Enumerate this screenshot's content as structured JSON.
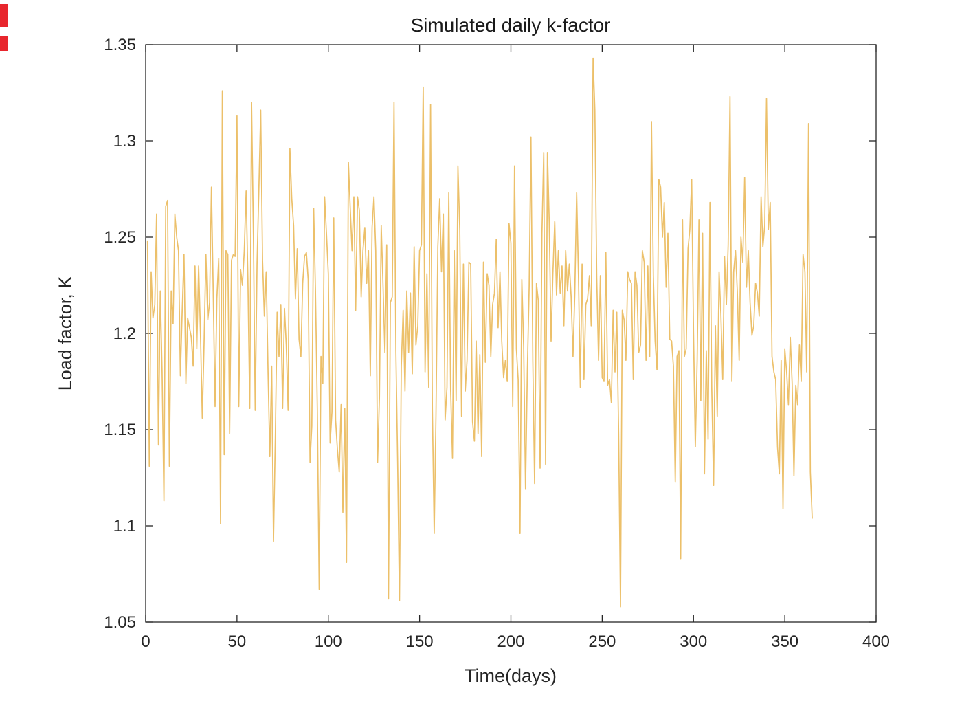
{
  "chart_data": {
    "type": "line",
    "title": "Simulated daily k-factor",
    "xlabel": "Time(days)",
    "ylabel": "Load factor, K",
    "xlim": [
      0,
      400
    ],
    "ylim": [
      1.05,
      1.35
    ],
    "xticks": [
      0,
      50,
      100,
      150,
      200,
      250,
      300,
      350,
      400
    ],
    "xtick_labels": [
      "0",
      "50",
      "100",
      "150",
      "200",
      "250",
      "300",
      "350",
      "400"
    ],
    "yticks": [
      1.05,
      1.1,
      1.15,
      1.2,
      1.25,
      1.3,
      1.35
    ],
    "ytick_labels": [
      "1.05",
      "1.1",
      "1.15",
      "1.2",
      "1.25",
      "1.3",
      "1.35"
    ],
    "grid": false,
    "legend": "none",
    "line_color": "#ecc06a",
    "axis_color": "#262626",
    "background_color": "#ffffff",
    "series": [
      {
        "name": "daily k-factor",
        "x_start": 1,
        "x_step": 1,
        "y": [
          1.248,
          1.131,
          1.232,
          1.208,
          1.215,
          1.262,
          1.142,
          1.222,
          1.18,
          1.113,
          1.266,
          1.269,
          1.131,
          1.222,
          1.205,
          1.262,
          1.25,
          1.243,
          1.178,
          1.211,
          1.241,
          1.174,
          1.208,
          1.203,
          1.198,
          1.183,
          1.235,
          1.192,
          1.235,
          1.201,
          1.156,
          1.195,
          1.241,
          1.207,
          1.216,
          1.276,
          1.222,
          1.162,
          1.218,
          1.239,
          1.101,
          1.326,
          1.137,
          1.243,
          1.241,
          1.148,
          1.238,
          1.241,
          1.24,
          1.313,
          1.162,
          1.233,
          1.225,
          1.243,
          1.274,
          1.228,
          1.161,
          1.32,
          1.251,
          1.16,
          1.236,
          1.276,
          1.316,
          1.238,
          1.209,
          1.232,
          1.18,
          1.136,
          1.183,
          1.092,
          1.146,
          1.211,
          1.188,
          1.215,
          1.161,
          1.213,
          1.194,
          1.16,
          1.296,
          1.27,
          1.256,
          1.218,
          1.244,
          1.197,
          1.188,
          1.226,
          1.24,
          1.242,
          1.228,
          1.133,
          1.152,
          1.265,
          1.222,
          1.161,
          1.067,
          1.188,
          1.174,
          1.271,
          1.252,
          1.231,
          1.143,
          1.159,
          1.26,
          1.155,
          1.14,
          1.128,
          1.163,
          1.107,
          1.161,
          1.081,
          1.289,
          1.266,
          1.243,
          1.271,
          1.212,
          1.271,
          1.264,
          1.219,
          1.243,
          1.255,
          1.226,
          1.243,
          1.178,
          1.255,
          1.271,
          1.243,
          1.133,
          1.167,
          1.256,
          1.224,
          1.19,
          1.246,
          1.062,
          1.216,
          1.219,
          1.32,
          1.191,
          1.133,
          1.061,
          1.183,
          1.212,
          1.17,
          1.222,
          1.19,
          1.221,
          1.179,
          1.245,
          1.194,
          1.204,
          1.243,
          1.246,
          1.328,
          1.18,
          1.231,
          1.172,
          1.319,
          1.161,
          1.096,
          1.158,
          1.245,
          1.27,
          1.232,
          1.262,
          1.155,
          1.172,
          1.273,
          1.171,
          1.135,
          1.243,
          1.165,
          1.287,
          1.254,
          1.157,
          1.236,
          1.17,
          1.186,
          1.237,
          1.236,
          1.154,
          1.144,
          1.196,
          1.148,
          1.189,
          1.136,
          1.237,
          1.185,
          1.231,
          1.225,
          1.188,
          1.215,
          1.221,
          1.249,
          1.203,
          1.232,
          1.196,
          1.177,
          1.186,
          1.175,
          1.257,
          1.247,
          1.162,
          1.287,
          1.192,
          1.176,
          1.096,
          1.228,
          1.193,
          1.119,
          1.179,
          1.224,
          1.302,
          1.186,
          1.122,
          1.226,
          1.217,
          1.13,
          1.252,
          1.294,
          1.132,
          1.294,
          1.258,
          1.196,
          1.231,
          1.258,
          1.22,
          1.243,
          1.221,
          1.235,
          1.204,
          1.243,
          1.222,
          1.236,
          1.219,
          1.188,
          1.221,
          1.273,
          1.231,
          1.172,
          1.236,
          1.176,
          1.215,
          1.218,
          1.23,
          1.204,
          1.343,
          1.316,
          1.229,
          1.186,
          1.23,
          1.177,
          1.175,
          1.242,
          1.173,
          1.176,
          1.164,
          1.212,
          1.18,
          1.211,
          1.148,
          1.058,
          1.212,
          1.207,
          1.186,
          1.232,
          1.228,
          1.226,
          1.176,
          1.232,
          1.225,
          1.19,
          1.194,
          1.243,
          1.237,
          1.186,
          1.235,
          1.188,
          1.31,
          1.23,
          1.196,
          1.181,
          1.28,
          1.276,
          1.25,
          1.268,
          1.224,
          1.252,
          1.197,
          1.196,
          1.183,
          1.123,
          1.188,
          1.191,
          1.083,
          1.259,
          1.188,
          1.192,
          1.244,
          1.254,
          1.28,
          1.2,
          1.141,
          1.186,
          1.259,
          1.165,
          1.252,
          1.127,
          1.191,
          1.145,
          1.268,
          1.172,
          1.121,
          1.204,
          1.157,
          1.232,
          1.21,
          1.176,
          1.24,
          1.215,
          1.246,
          1.323,
          1.175,
          1.232,
          1.243,
          1.222,
          1.186,
          1.25,
          1.237,
          1.281,
          1.224,
          1.243,
          1.216,
          1.199,
          1.204,
          1.226,
          1.221,
          1.209,
          1.271,
          1.245,
          1.256,
          1.322,
          1.254,
          1.268,
          1.188,
          1.18,
          1.176,
          1.141,
          1.127,
          1.186,
          1.109,
          1.192,
          1.18,
          1.163,
          1.198,
          1.174,
          1.126,
          1.173,
          1.163,
          1.194,
          1.175,
          1.241,
          1.232,
          1.18,
          1.309,
          1.128,
          1.104
        ]
      }
    ]
  },
  "decorations": {
    "edge_marker_color": "#e8262d"
  }
}
